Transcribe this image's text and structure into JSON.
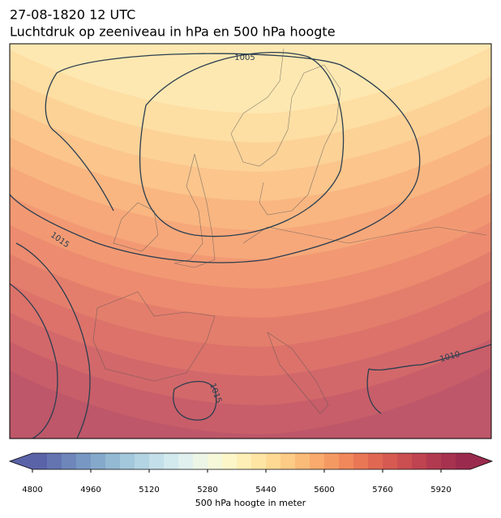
{
  "header": {
    "title": "27-08-1820 12 UTC",
    "subtitle": "Luchtdruk op zeeniveau in hPa en 500 hPa hoogte"
  },
  "map": {
    "isobar_labels": [
      "1005",
      "1015",
      "1015",
      "1010"
    ]
  },
  "colorbar": {
    "label": "500 hPa hoogte in meter",
    "lim": [
      4800,
      6000
    ],
    "ticks": [
      4800,
      4960,
      5120,
      5280,
      5440,
      5600,
      5760,
      5920
    ],
    "colors": [
      "#5b63a8",
      "#6474b1",
      "#6e86ba",
      "#7898c3",
      "#85a9cb",
      "#93b9d3",
      "#a3c7db",
      "#b3d4e2",
      "#c3dfe9",
      "#d2e9ee",
      "#e0f0ee",
      "#ecf5e6",
      "#f6f8da",
      "#fcf6c9",
      "#feefb6",
      "#fee5a4",
      "#fdd993",
      "#fccb85",
      "#fbbb78",
      "#f9aa6c",
      "#f59963",
      "#f0885b",
      "#e97756",
      "#e06853",
      "#d65a51",
      "#cb4e51",
      "#bf4350",
      "#b23a50",
      "#a6324f",
      "#9a2b4e"
    ]
  }
}
